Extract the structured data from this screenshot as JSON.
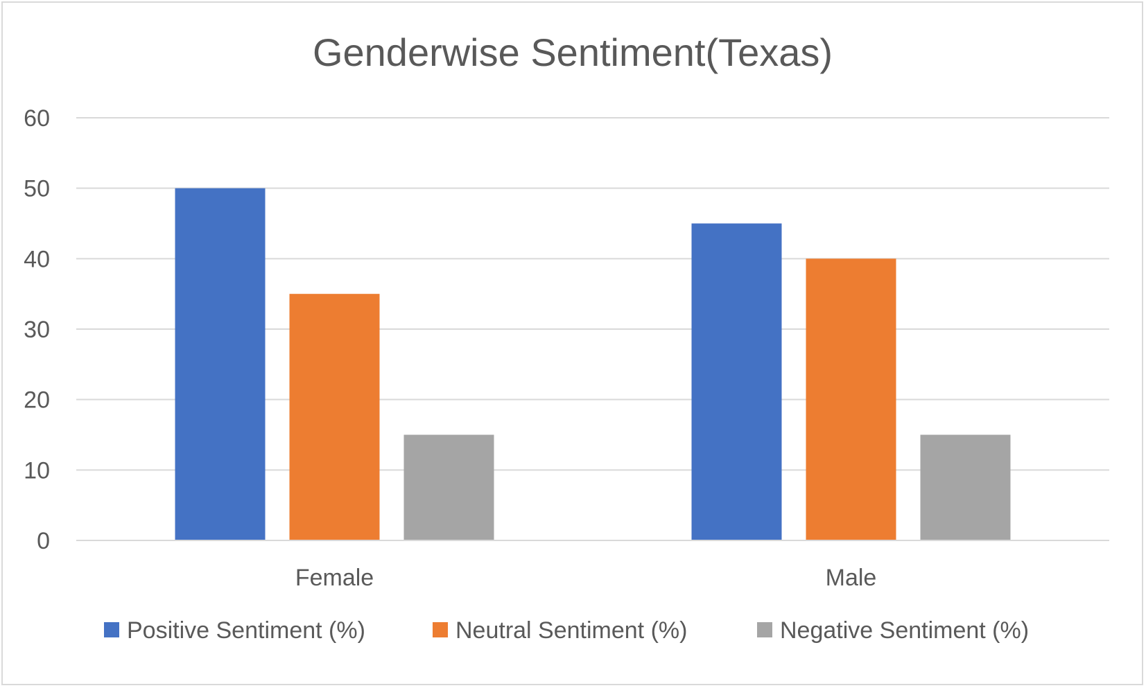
{
  "chart_data": {
    "type": "bar",
    "title": "Genderwise Sentiment(Texas)",
    "xlabel": "",
    "ylabel": "",
    "categories": [
      "Female",
      "Male"
    ],
    "series": [
      {
        "name": "Positive Sentiment (%)",
        "values": [
          50,
          45
        ],
        "color": "#4472c4"
      },
      {
        "name": "Neutral Sentiment (%)",
        "values": [
          35,
          40
        ],
        "color": "#ed7d31"
      },
      {
        "name": "Negative Sentiment (%)",
        "values": [
          15,
          15
        ],
        "color": "#a5a5a5"
      }
    ],
    "ylim": [
      0,
      60
    ],
    "yticks": [
      "0",
      "10",
      "20",
      "30",
      "40",
      "50",
      "60"
    ],
    "grid": true,
    "legend_position": "bottom"
  }
}
